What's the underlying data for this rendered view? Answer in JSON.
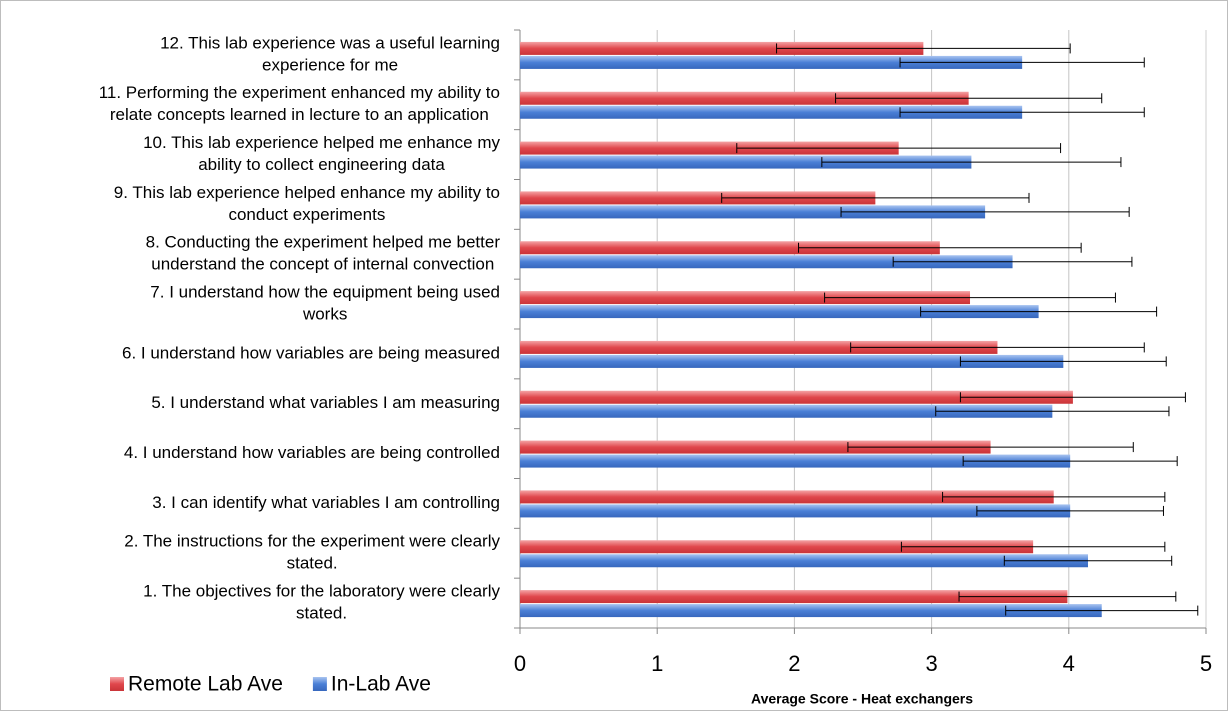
{
  "chart_data": {
    "type": "barh",
    "x_label": "Average Score - Heat exchangers",
    "categories": [
      [
        "1.     The objectives for the laboratory were clearly",
        "stated."
      ],
      [
        "2.     The instructions for the experiment were clearly",
        "stated."
      ],
      [
        "3.     I can identify what variables I am controlling"
      ],
      [
        "4.     I understand how variables are being controlled"
      ],
      [
        "5.     I understand what variables I am measuring"
      ],
      [
        "6.     I understand how variables are being measured"
      ],
      [
        "7.     I understand how the equipment being used",
        "works"
      ],
      [
        "8.   Conducting the experiment helped me better",
        "understand the concept of internal convection"
      ],
      [
        "9.     This lab experience helped enhance my ability to",
        "conduct experiments"
      ],
      [
        "10.     This lab experience helped me enhance my",
        "ability to collect engineering data"
      ],
      [
        "11. Performing the experiment enhanced my ability to",
        "relate concepts learned in lecture to an application"
      ],
      [
        "12.  This lab experience was a useful learning",
        "experience for me"
      ]
    ],
    "series": [
      {
        "name": "Remote Lab Ave",
        "color": "#e0474c",
        "values": [
          3.99,
          3.74,
          3.89,
          3.43,
          4.03,
          3.48,
          3.28,
          3.06,
          2.59,
          2.76,
          3.27,
          2.94
        ],
        "errors": [
          0.79,
          0.96,
          0.81,
          1.04,
          0.82,
          1.07,
          1.06,
          1.03,
          1.12,
          1.18,
          0.97,
          1.07
        ]
      },
      {
        "name": "In-Lab Ave",
        "color": "#4a7fd6",
        "values": [
          4.24,
          4.14,
          4.01,
          4.01,
          3.88,
          3.96,
          3.78,
          3.59,
          3.39,
          3.29,
          3.66,
          3.66
        ],
        "errors": [
          0.7,
          0.61,
          0.68,
          0.78,
          0.85,
          0.75,
          0.86,
          0.87,
          1.05,
          1.09,
          0.89,
          0.89
        ]
      }
    ],
    "xlim": [
      0,
      5
    ],
    "xticks": [
      0,
      1,
      2,
      3,
      4,
      5
    ],
    "grid": true,
    "legend": "bottom-left"
  }
}
